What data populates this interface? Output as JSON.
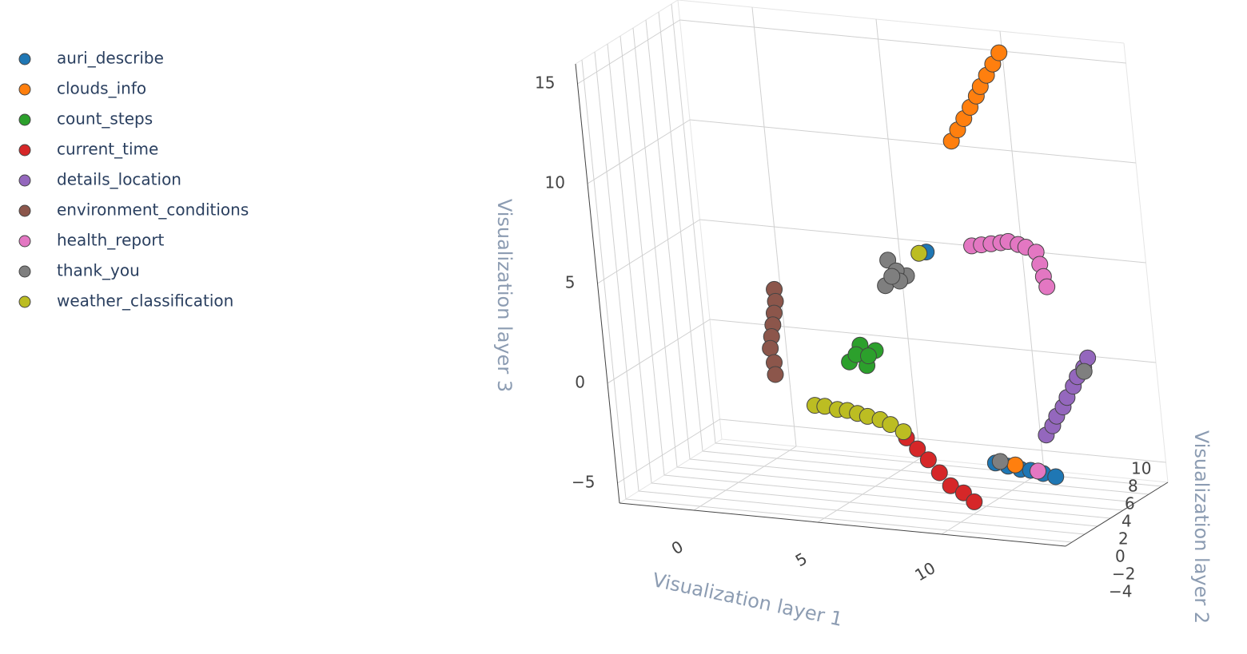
{
  "chart_data": {
    "type": "scatter3d",
    "xlabel": "Visualization layer 1",
    "ylabel": "Visualization layer 2",
    "zlabel": "Visualization layer 3",
    "xlim": [
      -3,
      15
    ],
    "ylim": [
      -5,
      11
    ],
    "zlim": [
      -6,
      16
    ],
    "xticks": [
      0,
      5,
      10
    ],
    "yticks": [
      {
        "value": -4,
        "label": "−4"
      },
      {
        "value": -2,
        "label": "−2"
      },
      0,
      2,
      4,
      6,
      8,
      10
    ],
    "zticks": [
      {
        "value": -5,
        "label": "−5"
      },
      0,
      5,
      10,
      15
    ],
    "grid": true,
    "legend": "left",
    "series": [
      {
        "name": "auri_describe",
        "color": "#1f77b4",
        "x": [
          11.1,
          11.6,
          12.1,
          12.5,
          13.0,
          13.5,
          7.2
        ],
        "y": [
          0,
          0,
          0,
          0,
          0,
          0,
          7
        ],
        "z": [
          -3.3,
          -3.4,
          -3.5,
          -3.5,
          -3.6,
          -3.7,
          5.4
        ]
      },
      {
        "name": "clouds_info",
        "color": "#ff7f0e",
        "x": [
          8.4,
          8.7,
          9.0,
          9.3,
          9.6,
          9.8,
          10.1,
          10.4,
          10.7,
          11.9
        ],
        "y": [
          8,
          8,
          8,
          8,
          8,
          8,
          8,
          8,
          8,
          0
        ],
        "z": [
          10.9,
          11.5,
          12.1,
          12.7,
          13.3,
          13.8,
          14.4,
          15.0,
          15.6,
          -3.3
        ]
      },
      {
        "name": "count_steps",
        "color": "#2ca02c",
        "x": [
          3.9,
          4.4,
          5.0,
          4.6,
          4.2,
          4.7
        ],
        "y": [
          6,
          6,
          6,
          6,
          6,
          6
        ],
        "z": [
          -0.3,
          0.6,
          0.4,
          -0.4,
          0.1,
          0.1
        ]
      },
      {
        "name": "current_time",
        "color": "#d62728",
        "x": [
          7.3,
          7.7,
          8.1,
          8.5,
          8.9,
          9.4,
          9.8,
          6.0
        ],
        "y": [
          1,
          1,
          1,
          1,
          1,
          1,
          1,
          7
        ],
        "z": [
          -2.7,
          -3.2,
          -3.7,
          -4.3,
          -4.9,
          -5.2,
          -5.6,
          3.9
        ]
      },
      {
        "name": "details_location",
        "color": "#9467bd",
        "x": [
          11.9,
          12.2,
          12.4,
          12.7,
          12.9,
          13.2,
          13.4,
          13.7,
          13.9
        ],
        "y": [
          5,
          5,
          5,
          5,
          5,
          5,
          5,
          5,
          5
        ],
        "z": [
          -2.8,
          -2.3,
          -1.8,
          -1.3,
          -0.8,
          -0.2,
          0.3,
          0.8,
          1.3
        ]
      },
      {
        "name": "environment_conditions",
        "color": "#8c564b",
        "x": [
          0.3,
          0.3,
          0.2,
          0.1,
          0,
          -0.1,
          0,
          0
        ],
        "y": [
          9,
          9,
          9,
          9,
          9,
          9,
          9,
          9
        ],
        "z": [
          2.3,
          1.7,
          1.1,
          0.5,
          -0.1,
          -0.7,
          -1.4,
          -2.0
        ]
      },
      {
        "name": "health_report",
        "color": "#e377c2",
        "x": [
          8.8,
          9.2,
          9.6,
          10.0,
          10.3,
          10.7,
          11.0,
          11.4,
          11.5,
          11.6,
          11.7,
          12.8
        ],
        "y": [
          8,
          8,
          8,
          8,
          8,
          8,
          8,
          8,
          8,
          8,
          8,
          0
        ],
        "z": [
          5.7,
          5.8,
          5.9,
          6.0,
          6.1,
          6.0,
          5.9,
          5.7,
          5.1,
          4.5,
          4.0,
          -3.5
        ]
      },
      {
        "name": "thank_you",
        "color": "#7f7f7f",
        "x": [
          5.6,
          6.3,
          5.4,
          5.9,
          6.0,
          5.7,
          13.7,
          11.3
        ],
        "y": [
          7,
          7,
          7,
          7,
          7,
          7,
          5,
          0
        ],
        "z": [
          4.8,
          4.1,
          3.5,
          4.3,
          3.8,
          4.0,
          0.6,
          -3.2
        ]
      },
      {
        "name": "weather_classification",
        "color": "#bcbd22",
        "x": [
          3.7,
          4.1,
          4.6,
          5.0,
          5.4,
          5.8,
          6.3,
          6.7,
          7.2,
          6.9
        ],
        "y": [
          1,
          1,
          1,
          1,
          1,
          1,
          1,
          1,
          1,
          7
        ],
        "z": [
          -1.5,
          -1.5,
          -1.6,
          -1.6,
          -1.7,
          -1.8,
          -1.9,
          -2.1,
          -2.4,
          5.3
        ]
      }
    ]
  }
}
